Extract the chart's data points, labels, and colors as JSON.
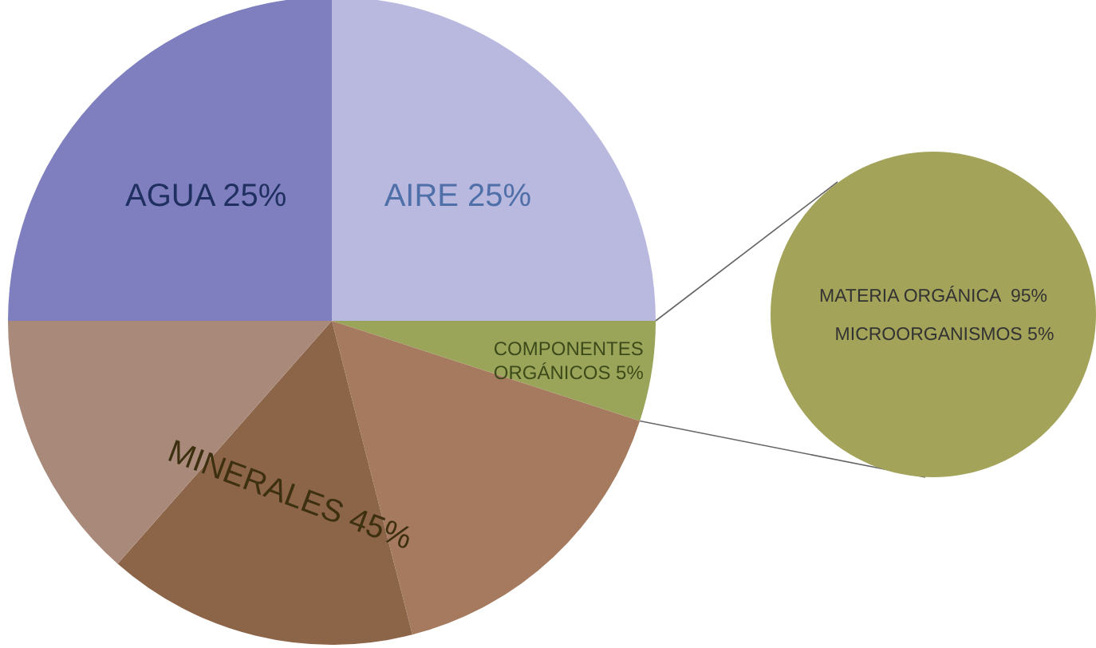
{
  "chart_data": [
    {
      "type": "pie",
      "categories": [
        "AIRE 25%",
        "COMPONENTES ORGÁNICOS 5%",
        null,
        "MINERALES 45%",
        null,
        "AGUA 25%"
      ],
      "values": [
        25,
        5,
        16,
        15.5,
        13.5,
        25
      ],
      "colors": [
        "#b9b9e0",
        "#9aa55a",
        "#a57a5e",
        "#8c6448",
        "#a8897a",
        "#7f7fbf"
      ]
    },
    {
      "type": "other",
      "annotations": [
        "MATERIA ORGÁNICA  95%",
        "MICROORGANISMOS 5%"
      ],
      "color": "#a3a35a"
    }
  ]
}
